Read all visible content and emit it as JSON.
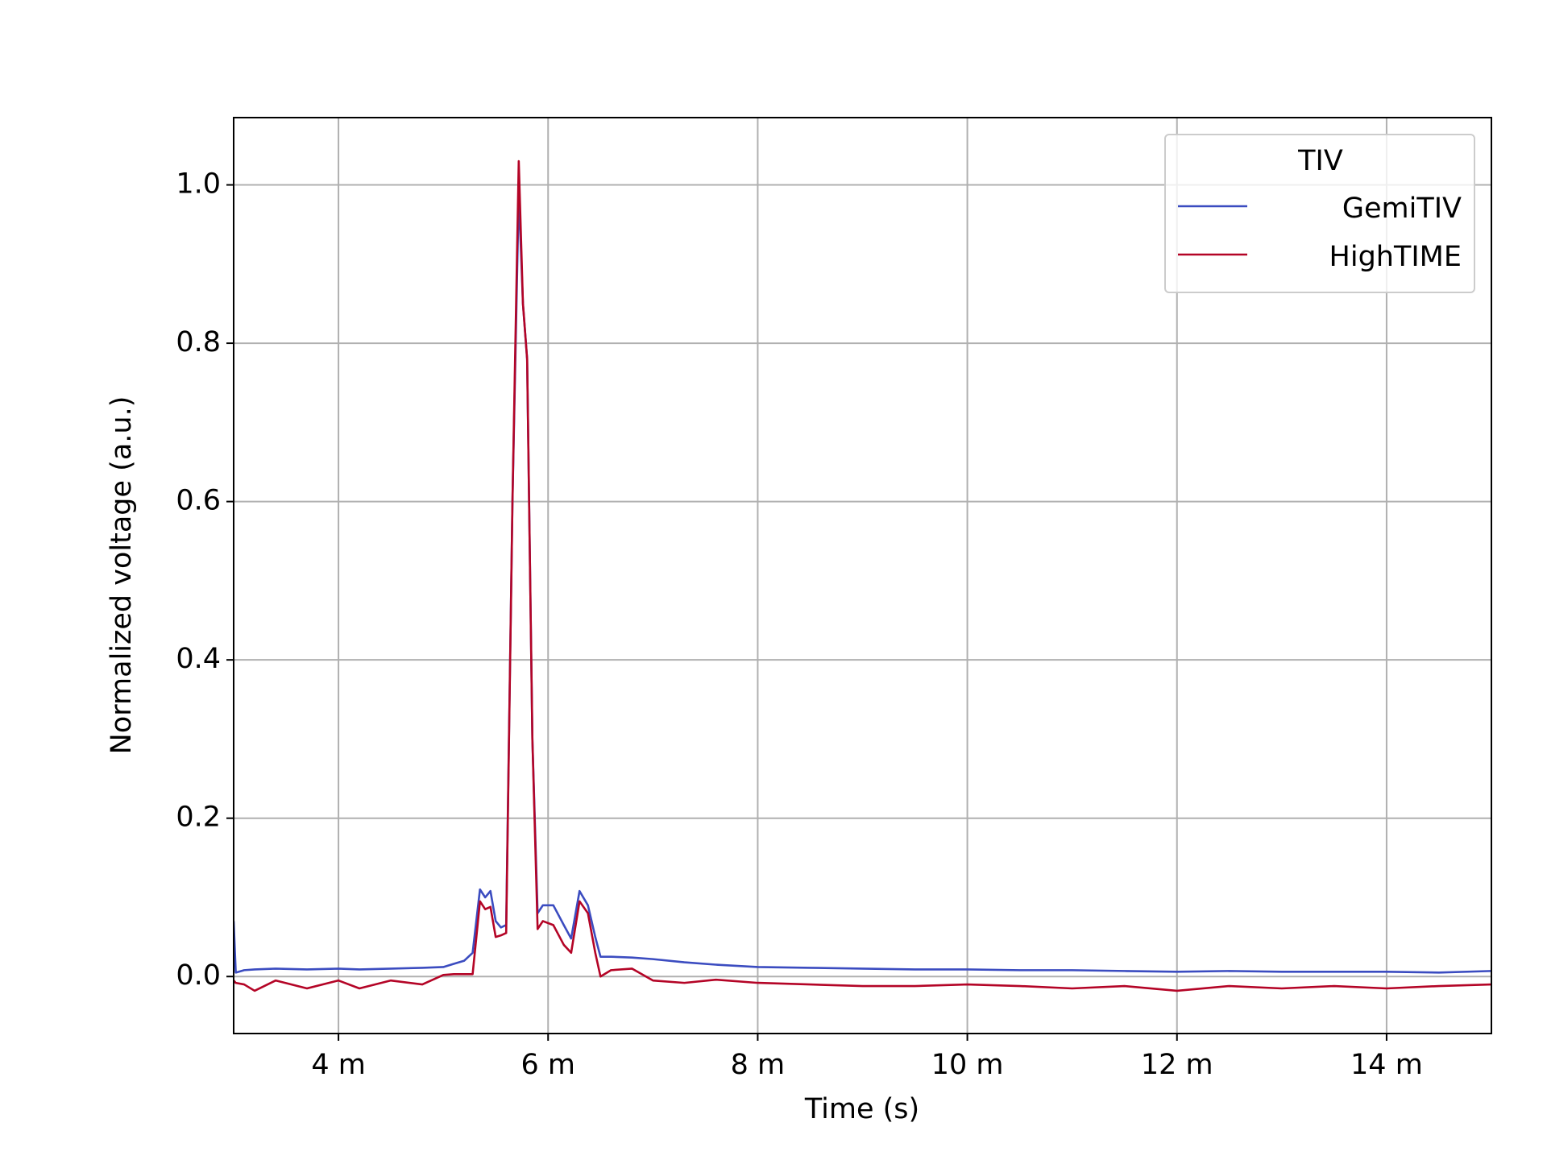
{
  "chart_data": {
    "type": "line",
    "xlabel": "Time (s)",
    "ylabel": "Normalized voltage (a.u.)",
    "legend_title": "TIV",
    "legend_position": "upper right",
    "grid": true,
    "xlim": [
      0.003,
      0.015
    ],
    "ylim": [
      -0.072,
      1.085
    ],
    "xticks": [
      {
        "value": 0.004,
        "label": "4 m"
      },
      {
        "value": 0.006,
        "label": "6 m"
      },
      {
        "value": 0.008,
        "label": "8 m"
      },
      {
        "value": 0.01,
        "label": "10 m"
      },
      {
        "value": 0.012,
        "label": "12 m"
      },
      {
        "value": 0.014,
        "label": "14 m"
      }
    ],
    "yticks": [
      {
        "value": 0,
        "label": "0.0"
      },
      0.2,
      0.4,
      0.6,
      0.8,
      {
        "value": 1,
        "label": "1.0"
      }
    ],
    "x": [
      0.003,
      0.00302,
      0.0031,
      0.0032,
      0.0034,
      0.0037,
      0.004,
      0.0042,
      0.0045,
      0.0048,
      0.005,
      0.0051,
      0.0052,
      0.00528,
      0.00535,
      0.0054,
      0.00545,
      0.0055,
      0.00555,
      0.0056,
      0.00566,
      0.00572,
      0.00576,
      0.0058,
      0.00585,
      0.0059,
      0.00595,
      0.00605,
      0.00615,
      0.00622,
      0.0063,
      0.00638,
      0.00645,
      0.0065,
      0.0066,
      0.0068,
      0.007,
      0.0073,
      0.0076,
      0.008,
      0.0085,
      0.009,
      0.0095,
      0.01,
      0.0105,
      0.011,
      0.0115,
      0.012,
      0.0125,
      0.013,
      0.0135,
      0.014,
      0.0145,
      0.015
    ],
    "series": [
      {
        "name": "GemiTIV",
        "color": "#3b4cc0",
        "values": [
          0.07,
          0.005,
          0.008,
          0.009,
          0.01,
          0.009,
          0.01,
          0.009,
          0.01,
          0.011,
          0.012,
          0.016,
          0.02,
          0.03,
          0.11,
          0.1,
          0.108,
          0.07,
          0.062,
          0.065,
          0.6,
          0.99,
          0.85,
          0.78,
          0.3,
          0.08,
          0.09,
          0.09,
          0.065,
          0.048,
          0.108,
          0.09,
          0.05,
          0.025,
          0.025,
          0.024,
          0.022,
          0.018,
          0.015,
          0.012,
          0.011,
          0.01,
          0.009,
          0.009,
          0.008,
          0.008,
          0.007,
          0.006,
          0.007,
          0.006,
          0.006,
          0.006,
          0.005,
          0.007
        ]
      },
      {
        "name": "HighTIME",
        "color": "#b40426",
        "values": [
          -0.005,
          -0.008,
          -0.01,
          -0.018,
          -0.005,
          -0.015,
          -0.005,
          -0.015,
          -0.005,
          -0.01,
          0.002,
          0.003,
          0.003,
          0.003,
          0.095,
          0.085,
          0.088,
          0.05,
          0.052,
          0.055,
          0.6,
          1.03,
          0.85,
          0.78,
          0.3,
          0.06,
          0.07,
          0.065,
          0.04,
          0.03,
          0.095,
          0.08,
          0.03,
          0.0,
          0.008,
          0.01,
          -0.005,
          -0.008,
          -0.004,
          -0.008,
          -0.01,
          -0.012,
          -0.012,
          -0.01,
          -0.012,
          -0.015,
          -0.012,
          -0.018,
          -0.012,
          -0.015,
          -0.012,
          -0.015,
          -0.012,
          -0.01
        ]
      }
    ]
  }
}
